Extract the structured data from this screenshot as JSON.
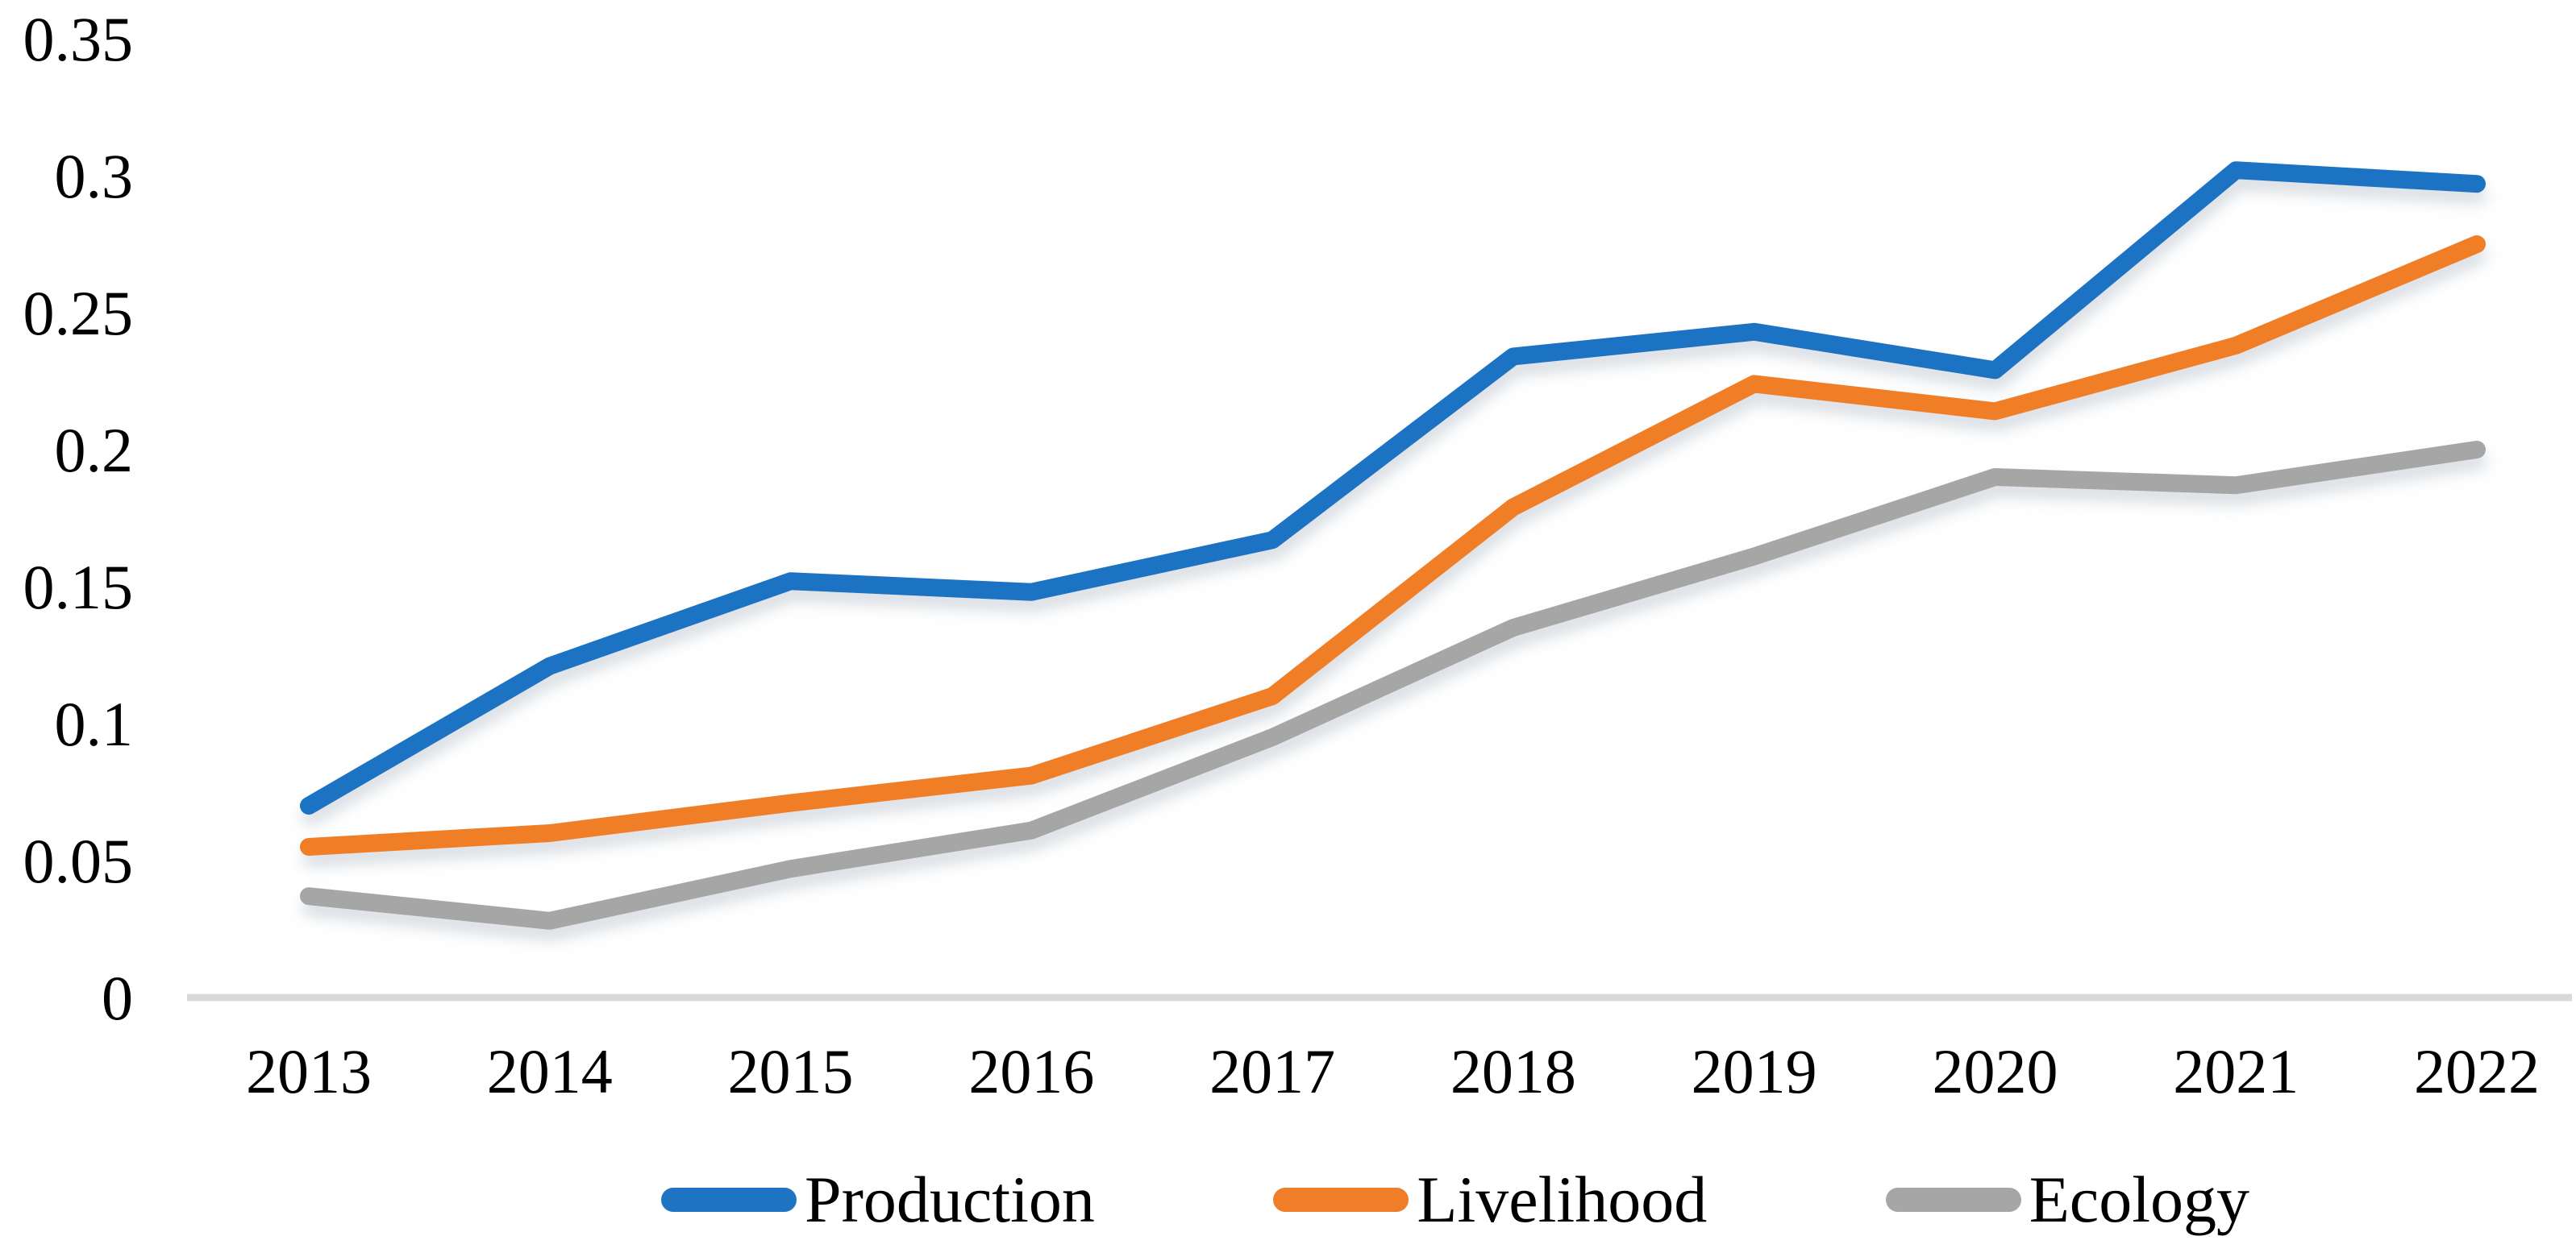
{
  "chart_data": {
    "type": "line",
    "title": "",
    "xlabel": "",
    "ylabel": "",
    "categories": [
      "2013",
      "2014",
      "2015",
      "2016",
      "2017",
      "2018",
      "2019",
      "2020",
      "2021",
      "2022"
    ],
    "series": [
      {
        "name": "Production",
        "color": "#1E73C3",
        "values": [
          0.07,
          0.121,
          0.152,
          0.148,
          0.167,
          0.234,
          0.243,
          0.229,
          0.302,
          0.297
        ]
      },
      {
        "name": "Livelihood",
        "color": "#F07E28",
        "values": [
          0.055,
          0.06,
          0.071,
          0.081,
          0.11,
          0.179,
          0.224,
          0.214,
          0.238,
          0.275
        ]
      },
      {
        "name": "Ecology",
        "color": "#A6A6A6",
        "values": [
          0.037,
          0.028,
          0.047,
          0.061,
          0.095,
          0.135,
          0.161,
          0.19,
          0.187,
          0.2
        ]
      }
    ],
    "ylim": [
      0,
      0.35
    ],
    "y_ticks": [
      "0",
      "0.05",
      "0.1",
      "0.15",
      "0.2",
      "0.25",
      "0.3",
      "0.35"
    ],
    "grid": false,
    "y_axis_line": false,
    "baseline_color": "#D9D9D9",
    "text_color": "#000000",
    "legend_position": "bottom"
  }
}
